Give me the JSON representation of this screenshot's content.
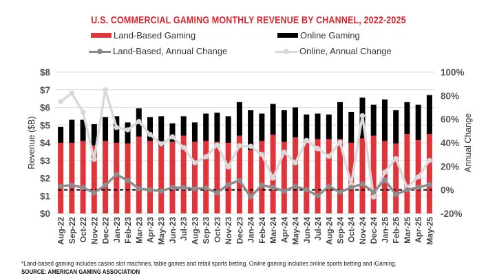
{
  "chart_data": {
    "type": "bar",
    "title": "U.S. COMMERCIAL GAMING MONTHLY REVENUE BY CHANNEL, 2022-2025",
    "xlabel": "",
    "ylabel": "Revenue ($B)",
    "y2label": "Annual Change",
    "ylim": [
      0,
      8
    ],
    "y2lim": [
      -0.2,
      1.0
    ],
    "yticks": [
      "$0",
      "$1",
      "$2",
      "$3",
      "$4",
      "$5",
      "$6",
      "$7",
      "$8"
    ],
    "y2ticks": [
      "-20%",
      "0%",
      "20%",
      "40%",
      "60%",
      "80%",
      "100%"
    ],
    "grid": true,
    "stacked": true,
    "categories": [
      "Aug-22",
      "Sep-22",
      "Oct-22",
      "Nov-22",
      "Dec-22",
      "Jan-23",
      "Feb-23",
      "Mar-23",
      "Apr-23",
      "May-23",
      "Jun-23",
      "Jul-23",
      "Aug-23",
      "Sep-23",
      "Oct-23",
      "Nov-23",
      "Dec-23",
      "Jan-24",
      "Feb-24",
      "Mar-24",
      "Apr-24",
      "May-24",
      "Jun-24",
      "Jul-24",
      "Aug-24",
      "Sep-24",
      "Oct-24",
      "Nov-24",
      "Dec-24",
      "Jan-25",
      "Feb-25",
      "Mar-25",
      "Apr-25",
      "May-25"
    ],
    "series": [
      {
        "name": "Land-Based Gaming",
        "kind": "bar",
        "axis": "left",
        "color": "#e0343a",
        "values": [
          4.0,
          4.0,
          4.1,
          3.85,
          4.1,
          4.0,
          3.95,
          4.35,
          4.1,
          3.8,
          4.05,
          4.4,
          4.05,
          4.1,
          4.05,
          4.0,
          4.4,
          3.6,
          4.1,
          4.45,
          4.05,
          4.3,
          4.2,
          4.2,
          4.2,
          4.2,
          4.0,
          4.25,
          4.4,
          4.1,
          3.95,
          4.5,
          4.15,
          4.5
        ]
      },
      {
        "name": "Online Gaming",
        "kind": "bar",
        "axis": "left",
        "color": "#000000",
        "values": [
          0.9,
          1.3,
          1.2,
          1.2,
          1.35,
          1.5,
          1.2,
          1.6,
          1.35,
          1.7,
          1.05,
          1.1,
          1.1,
          1.55,
          1.65,
          1.5,
          1.9,
          2.25,
          1.55,
          1.75,
          1.8,
          1.7,
          1.4,
          1.45,
          1.4,
          2.1,
          1.75,
          2.3,
          1.75,
          2.35,
          1.9,
          1.8,
          2.0,
          2.2
        ]
      },
      {
        "name": "Land-Based, Annual Change",
        "kind": "line",
        "axis": "right",
        "color": "#8c8c8c",
        "values": [
          0.03,
          0.04,
          0.02,
          -0.025,
          0.04,
          0.13,
          0.08,
          0.01,
          0.0,
          -0.01,
          0.02,
          0.02,
          0.01,
          0.015,
          -0.025,
          0.045,
          0.08,
          -0.06,
          0.04,
          0.02,
          -0.01,
          0.03,
          0.0,
          -0.05,
          0.03,
          -0.02,
          0.02,
          0.05,
          -0.02,
          0.085,
          -0.04,
          0.0,
          0.02,
          0.045
        ]
      },
      {
        "name": "Online, Annual Change",
        "kind": "line",
        "axis": "right",
        "color": "#d9d9d9",
        "values": [
          0.75,
          0.82,
          0.66,
          0.26,
          0.85,
          0.53,
          0.51,
          0.58,
          0.47,
          0.39,
          0.45,
          0.36,
          0.23,
          0.28,
          0.38,
          0.195,
          0.375,
          0.37,
          0.3,
          0.1,
          0.32,
          0.23,
          0.42,
          0.35,
          0.285,
          0.405,
          0.045,
          0.63,
          -0.06,
          0.15,
          0.265,
          0.02,
          0.11,
          0.25
        ]
      }
    ],
    "reference_line": {
      "axis": "right",
      "value": 0.0,
      "style": "dashed",
      "color": "#000000"
    },
    "legend": "top"
  },
  "legend_items": [
    {
      "label": "Land-Based Gaming"
    },
    {
      "label": "Online Gaming"
    },
    {
      "label": "Land-Based, Annual Change"
    },
    {
      "label": "Online, Annual Change"
    }
  ],
  "footnote": "*Land-based gaming includes casino slot machines, table games and retail sports betting. Online gaming includes online sports betting and iGaming.",
  "source": "SOURCE: AMERICAN GAMING ASSOCIATION"
}
